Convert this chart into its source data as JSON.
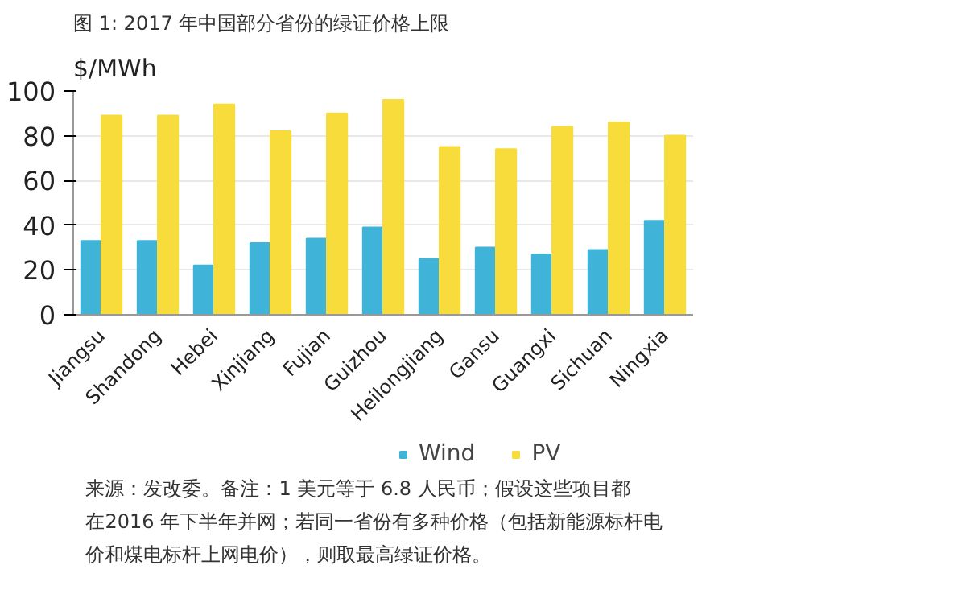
{
  "chart_data": {
    "type": "bar",
    "title": "图 1: 2017 年中国部分省份的绿证价格上限",
    "ylabel": "$/MWh",
    "categories": [
      "Jiangsu",
      "Shandong",
      "Hebei",
      "Xinjiang",
      "Fujian",
      "Guizhou",
      "Heilongjiang",
      "Gansu",
      "Guangxi",
      "Sichuan",
      "Ningxia"
    ],
    "series": [
      {
        "name": "Wind",
        "color": "#40b4d8",
        "values": [
          33,
          33,
          22,
          32,
          34,
          39,
          25,
          30,
          27,
          29,
          42
        ]
      },
      {
        "name": "PV",
        "color": "#f8dc3c",
        "values": [
          89,
          89,
          94,
          82,
          90,
          96,
          75,
          74,
          84,
          86,
          80
        ]
      }
    ],
    "ylim": [
      0,
      100
    ],
    "yticks": [
      0,
      20,
      40,
      60,
      80,
      100
    ],
    "grid": "y",
    "legend": "bottom",
    "annotations": [
      "来源：发改委。备注：1 美元等于 6.8 人民币；假设这些项目都在2016 年下半年并网；若同一省份有多种价格（包括新能源标杆电价和煤电标杆上网电价），则取最高绿证价格。"
    ]
  }
}
